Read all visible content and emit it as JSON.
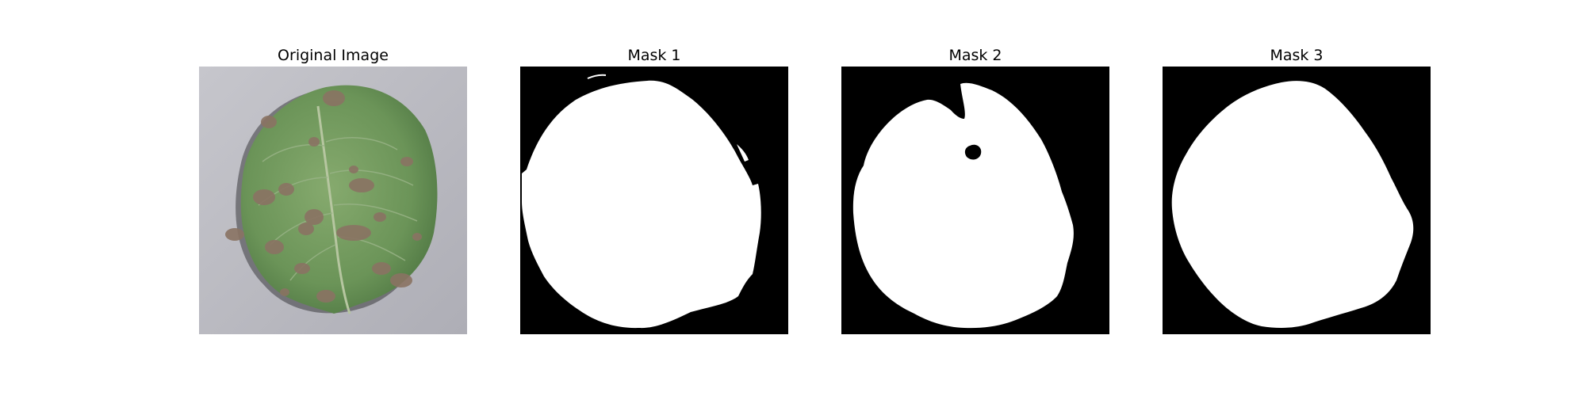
{
  "panels": [
    {
      "title": "Original Image"
    },
    {
      "title": "Mask 1"
    },
    {
      "title": "Mask 2"
    },
    {
      "title": "Mask 3"
    }
  ],
  "colors": {
    "background": "#bdbdc4",
    "leaf": "#6f9a5c",
    "lesion": "#8b7565",
    "mask_fg": "#ffffff",
    "mask_bg": "#000000"
  }
}
